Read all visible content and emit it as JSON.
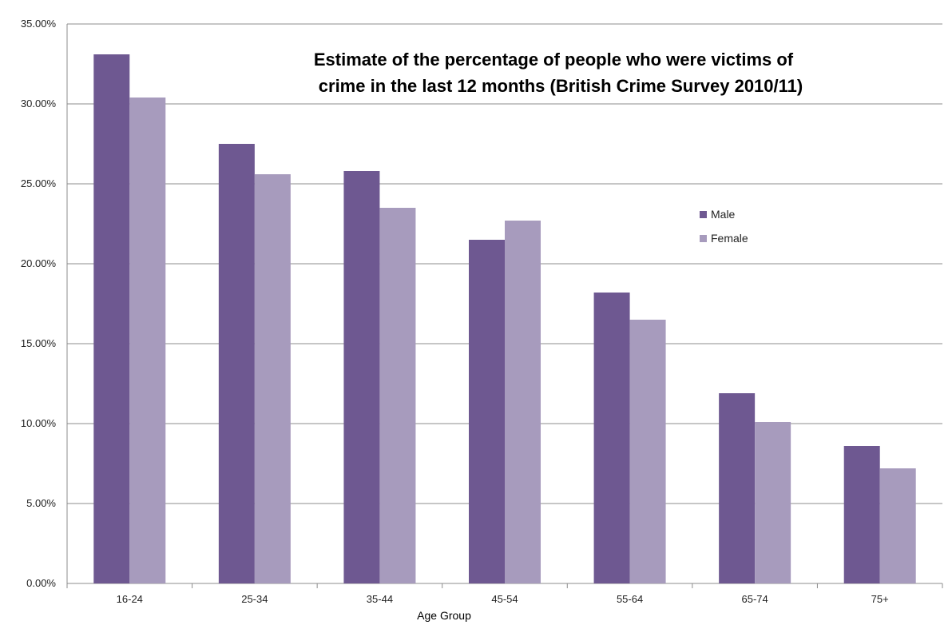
{
  "chart_data": {
    "type": "bar",
    "title_line1": "Estimate of the percentage of people who were victims of",
    "title_line2": "crime in the last 12 months (British Crime Survey 2010/11)",
    "xlabel": "Age Group",
    "ylabel": "",
    "categories": [
      "16-24",
      "25-34",
      "35-44",
      "45-54",
      "55-64",
      "65-74",
      "75+"
    ],
    "series": [
      {
        "name": "Male",
        "color": "#6e5891",
        "values": [
          33.1,
          27.5,
          25.8,
          21.5,
          18.2,
          11.9,
          8.6
        ]
      },
      {
        "name": "Female",
        "color": "#a79bbd",
        "values": [
          30.4,
          25.6,
          23.5,
          22.7,
          16.5,
          10.1,
          7.2
        ]
      }
    ],
    "ylim": [
      0,
      35
    ],
    "yticks": [
      "0.00%",
      "5.00%",
      "10.00%",
      "15.00%",
      "20.00%",
      "25.00%",
      "30.00%",
      "35.00%"
    ],
    "grid": true,
    "legend_position": "right"
  }
}
